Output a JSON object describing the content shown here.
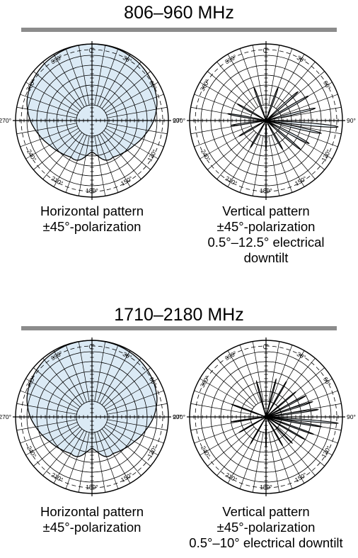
{
  "bands": [
    {
      "title": "806–960 MHz",
      "diagrams": [
        {
          "kind": "horizontal",
          "caption": [
            "Horizontal pattern",
            "±45°-polarization"
          ],
          "gains": [
            [
              0,
              0
            ],
            [
              20,
              -0.3
            ],
            [
              40,
              -1.2
            ],
            [
              60,
              -2.8
            ],
            [
              75,
              -4.6
            ],
            [
              90,
              -7.5
            ],
            [
              105,
              -11
            ],
            [
              120,
              -14
            ],
            [
              135,
              -16
            ],
            [
              150,
              -17.5
            ],
            [
              160,
              -19
            ],
            [
              170,
              -20.5
            ],
            [
              180,
              -21.5
            ],
            [
              190,
              -20.5
            ],
            [
              200,
              -19
            ],
            [
              210,
              -17.5
            ],
            [
              225,
              -16
            ],
            [
              240,
              -14
            ],
            [
              255,
              -11
            ],
            [
              270,
              -7.5
            ],
            [
              285,
              -4.6
            ],
            [
              300,
              -2.8
            ],
            [
              320,
              -1.2
            ],
            [
              340,
              -0.3
            ],
            [
              360,
              0
            ]
          ]
        },
        {
          "kind": "vertical",
          "caption": [
            "Vertical pattern",
            "±45°-polarization",
            "0.5°–12.5° electrical",
            "downtilt"
          ],
          "lobes": [
            [
              95,
              0,
              3
            ],
            [
              103,
              -8,
              3
            ],
            [
              76,
              -11,
              3
            ],
            [
              60,
              -12,
              3
            ],
            [
              118,
              -12,
              3
            ],
            [
              130,
              -14,
              3
            ],
            [
              48,
              -15,
              3
            ],
            [
              20,
              -19,
              3
            ],
            [
              340,
              -19,
              3
            ],
            [
              280,
              -17,
              3
            ],
            [
              262,
              -19,
              3
            ],
            [
              300,
              -20,
              3
            ],
            [
              240,
              -21,
              3
            ],
            [
              180,
              -22,
              3
            ],
            [
              150,
              -20,
              3
            ],
            [
              210,
              -21,
              3
            ]
          ]
        }
      ]
    },
    {
      "title": "1710–2180 MHz",
      "diagrams": [
        {
          "kind": "horizontal",
          "caption": [
            "Horizontal pattern",
            "±45°-polarization"
          ],
          "gains": [
            [
              0,
              0
            ],
            [
              20,
              -0.3
            ],
            [
              40,
              -1.2
            ],
            [
              60,
              -2.8
            ],
            [
              75,
              -4.6
            ],
            [
              90,
              -7.5
            ],
            [
              105,
              -11
            ],
            [
              120,
              -14
            ],
            [
              135,
              -16
            ],
            [
              150,
              -17.5
            ],
            [
              160,
              -19
            ],
            [
              170,
              -20.5
            ],
            [
              180,
              -21.5
            ],
            [
              190,
              -20.5
            ],
            [
              200,
              -19
            ],
            [
              210,
              -17.5
            ],
            [
              225,
              -16
            ],
            [
              240,
              -14
            ],
            [
              255,
              -11
            ],
            [
              270,
              -7.5
            ],
            [
              285,
              -4.6
            ],
            [
              300,
              -2.8
            ],
            [
              320,
              -1.2
            ],
            [
              340,
              -0.3
            ],
            [
              360,
              0
            ]
          ]
        },
        {
          "kind": "vertical",
          "caption": [
            "Vertical pattern",
            "±45°-polarization",
            "0.5°–10° electrical downtilt"
          ],
          "lobes": [
            [
              95,
              0,
              2
            ],
            [
              100,
              -8,
              2
            ],
            [
              82,
              -10,
              2
            ],
            [
              72,
              -12,
              2
            ],
            [
              110,
              -11,
              2
            ],
            [
              120,
              -14,
              2
            ],
            [
              62,
              -14,
              2
            ],
            [
              50,
              -17,
              2
            ],
            [
              30,
              -16,
              2
            ],
            [
              15,
              -17,
              2
            ],
            [
              345,
              -18,
              2
            ],
            [
              290,
              -18,
              2
            ],
            [
              262,
              -19,
              2
            ],
            [
              240,
              -21,
              2
            ],
            [
              180,
              -21,
              2
            ],
            [
              150,
              -20,
              2
            ],
            [
              210,
              -21,
              2
            ],
            [
              135,
              -18,
              2
            ]
          ]
        }
      ]
    }
  ],
  "angle_labels": [
    "0°",
    "30°",
    "60°",
    "90°",
    "120°",
    "150°",
    "180°",
    "210°",
    "240°",
    "270°",
    "300°",
    "330°"
  ],
  "colors": {
    "pattern_fill": "#dbeaf5",
    "rule": "#8c8c8c",
    "grid": "#000000"
  }
}
